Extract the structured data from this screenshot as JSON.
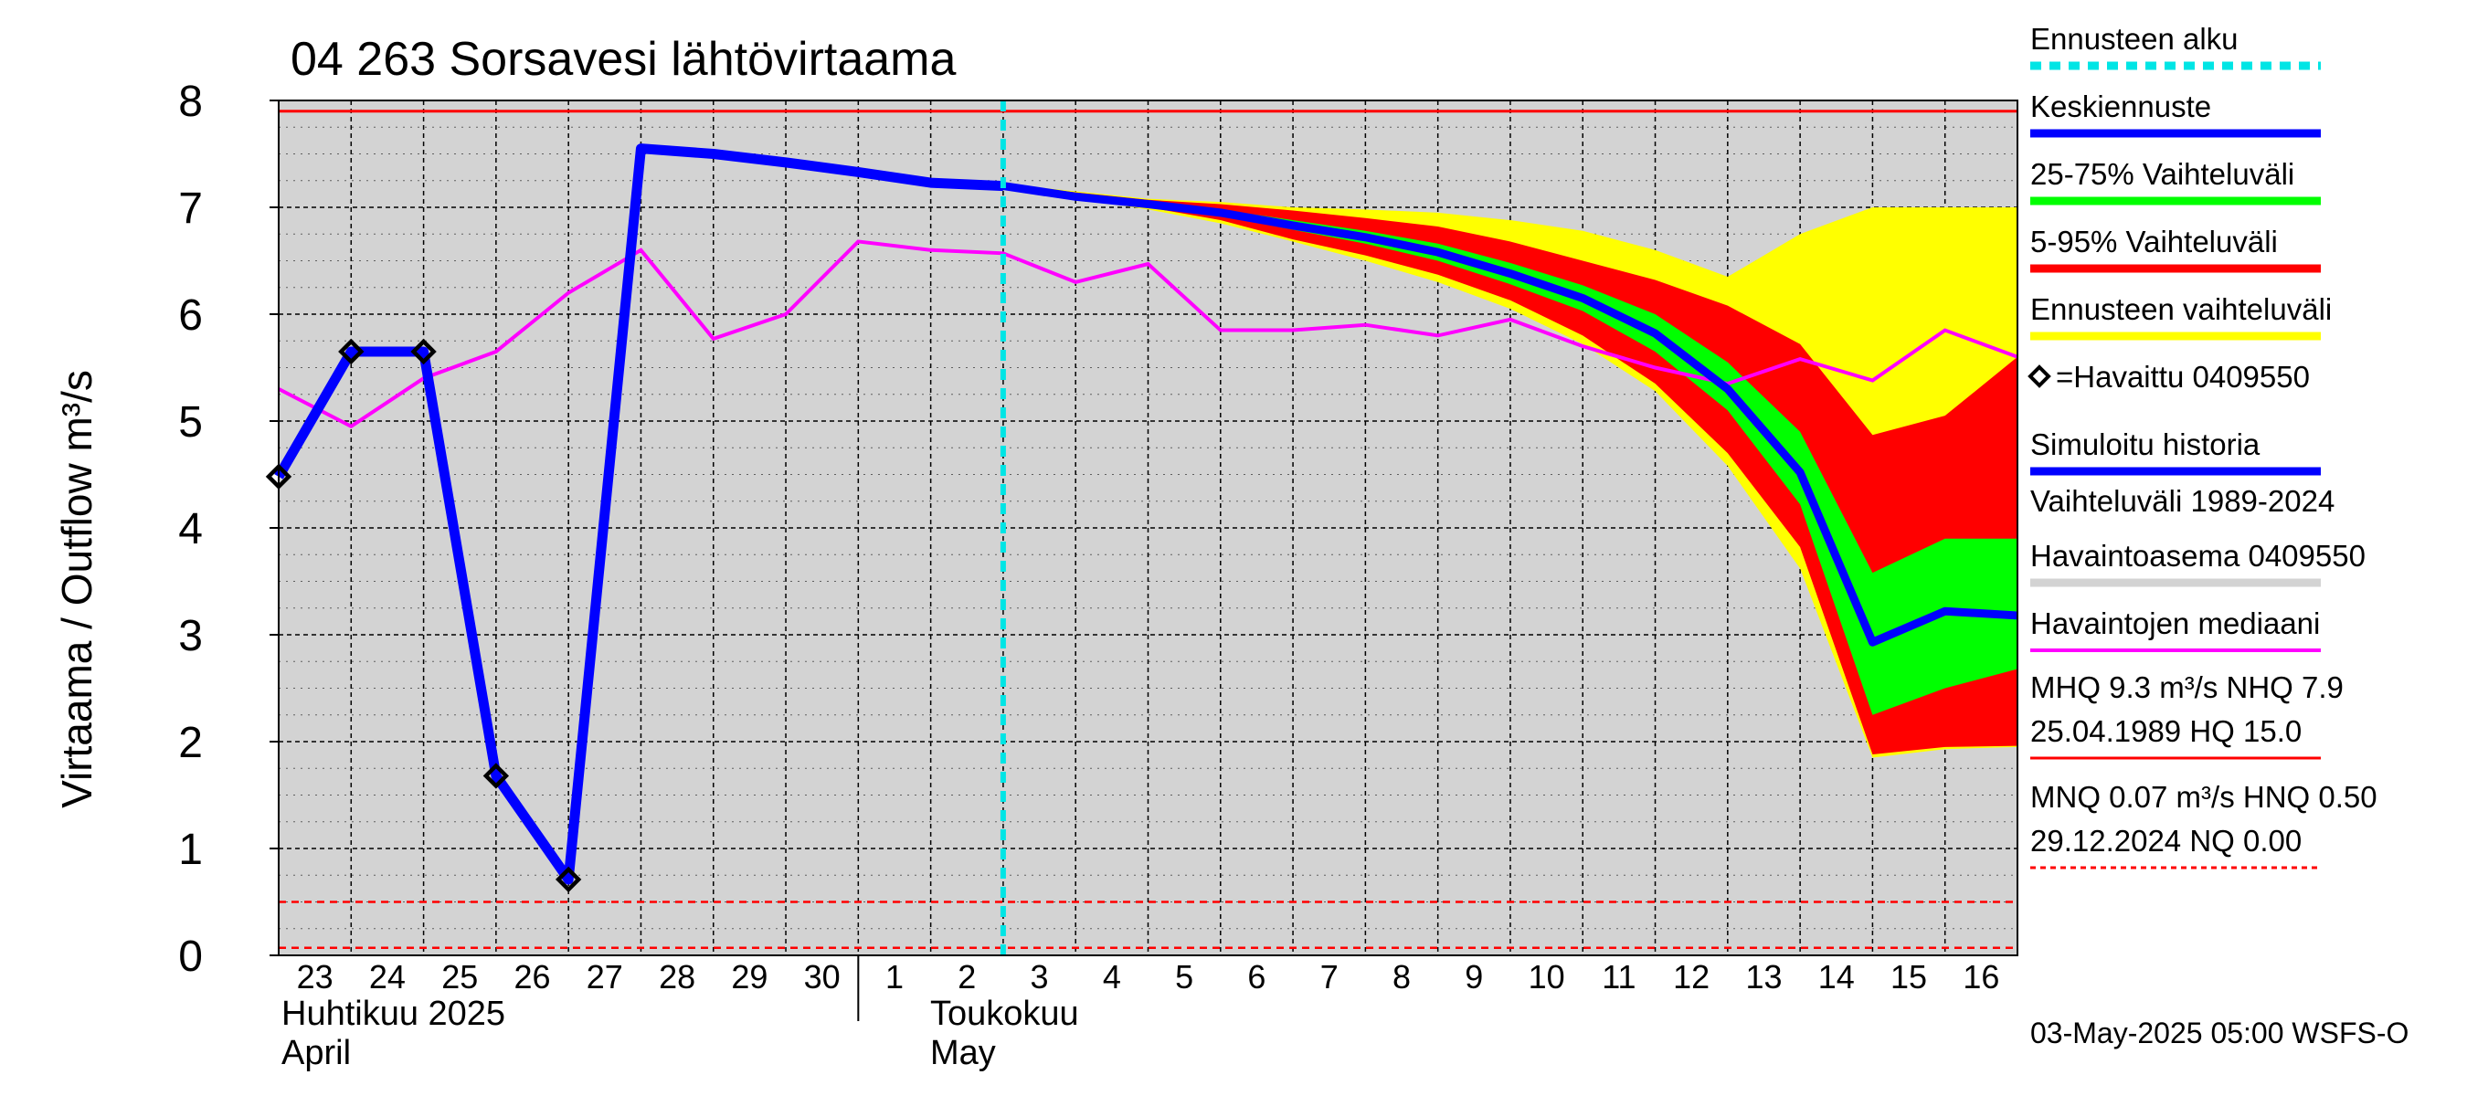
{
  "chart_data": {
    "type": "area",
    "title": "04 263 Sorsavesi lähtövirtaama",
    "ylabel": "Virtaama / Outflow    m³/s",
    "ylim": [
      0,
      8
    ],
    "yticks": [
      0,
      1,
      2,
      3,
      4,
      5,
      6,
      7,
      8
    ],
    "x_days": [
      {
        "day": 0,
        "label": "23"
      },
      {
        "day": 1,
        "label": "24"
      },
      {
        "day": 2,
        "label": "25"
      },
      {
        "day": 3,
        "label": "26"
      },
      {
        "day": 4,
        "label": "27"
      },
      {
        "day": 5,
        "label": "28"
      },
      {
        "day": 6,
        "label": "29"
      },
      {
        "day": 7,
        "label": "30"
      },
      {
        "day": 8,
        "label": "1"
      },
      {
        "day": 9,
        "label": "2"
      },
      {
        "day": 10,
        "label": "3"
      },
      {
        "day": 11,
        "label": "4"
      },
      {
        "day": 12,
        "label": "5"
      },
      {
        "day": 13,
        "label": "6"
      },
      {
        "day": 14,
        "label": "7"
      },
      {
        "day": 15,
        "label": "8"
      },
      {
        "day": 16,
        "label": "9"
      },
      {
        "day": 17,
        "label": "10"
      },
      {
        "day": 18,
        "label": "11"
      },
      {
        "day": 19,
        "label": "12"
      },
      {
        "day": 20,
        "label": "13"
      },
      {
        "day": 21,
        "label": "14"
      },
      {
        "day": 22,
        "label": "15"
      },
      {
        "day": 23,
        "label": "16"
      }
    ],
    "xlim_days": [
      0,
      24
    ],
    "month_labels": {
      "april_fi": "Huhtikuu  2025",
      "april_en": "April",
      "may_fi": "Toukokuu",
      "may_en": "May"
    },
    "forecast_start_day": 10,
    "reference_lines": {
      "high": 7.9,
      "low_a": 0.5,
      "low_b": 0.07
    },
    "observed": {
      "name": "=Havaittu 0409550",
      "x": [
        0,
        1,
        2,
        3,
        4
      ],
      "y": [
        4.48,
        5.65,
        5.65,
        1.68,
        0.71
      ]
    },
    "simulated": {
      "name": "Simuloitu historia",
      "x": [
        0,
        1,
        2,
        3,
        4,
        5,
        6,
        7,
        8,
        9,
        10
      ],
      "y": [
        4.48,
        5.65,
        5.65,
        1.68,
        0.71,
        7.55,
        7.5,
        7.42,
        7.33,
        7.23,
        7.2
      ]
    },
    "median": {
      "name": "Havaintojen mediaani",
      "x": [
        0,
        1,
        2,
        3,
        4,
        5,
        6,
        7,
        8,
        9,
        10,
        11,
        12,
        13,
        14,
        15,
        16,
        17,
        18,
        19,
        20,
        21,
        22,
        23,
        24
      ],
      "y": [
        5.3,
        4.95,
        5.4,
        5.65,
        6.2,
        6.6,
        5.77,
        6.0,
        6.68,
        6.6,
        6.57,
        6.3,
        6.47,
        5.85,
        5.85,
        5.9,
        5.8,
        5.95,
        5.7,
        5.5,
        5.35,
        5.58,
        5.38,
        5.85,
        5.6
      ]
    },
    "forecast_x": [
      10,
      11,
      12,
      13,
      14,
      15,
      16,
      17,
      18,
      19,
      20,
      21,
      22,
      23,
      24
    ],
    "forecast_mean": {
      "name": "Keskiennuste",
      "y": [
        7.2,
        7.1,
        7.03,
        6.95,
        6.83,
        6.72,
        6.58,
        6.38,
        6.15,
        5.82,
        5.3,
        4.52,
        2.93,
        3.22,
        3.18
      ]
    },
    "band_forecast": {
      "name": "Ennusteen vaihteluväli",
      "lower": [
        7.2,
        7.08,
        6.98,
        6.85,
        6.68,
        6.5,
        6.3,
        6.05,
        5.72,
        5.28,
        4.58,
        3.62,
        1.85,
        1.93,
        1.95
      ],
      "upper": [
        7.22,
        7.15,
        7.08,
        7.05,
        7.0,
        6.98,
        6.95,
        6.88,
        6.78,
        6.6,
        6.35,
        6.75,
        7.0,
        7.0,
        7.0
      ]
    },
    "band_5_95": {
      "name": "5-95% Vaihteluväli",
      "lower": [
        7.2,
        7.09,
        7.0,
        6.88,
        6.7,
        6.55,
        6.37,
        6.13,
        5.8,
        5.35,
        4.7,
        3.82,
        1.88,
        1.95,
        1.96
      ],
      "upper": [
        7.22,
        7.14,
        7.07,
        7.03,
        6.97,
        6.9,
        6.82,
        6.68,
        6.5,
        6.32,
        6.08,
        5.72,
        4.87,
        5.05,
        5.6
      ]
    },
    "band_25_75": {
      "name": "25-75% Vaihteluväli",
      "lower": [
        7.2,
        7.1,
        7.02,
        6.92,
        6.79,
        6.66,
        6.5,
        6.28,
        6.03,
        5.65,
        5.1,
        4.22,
        2.25,
        2.5,
        2.68
      ],
      "upper": [
        7.21,
        7.12,
        7.05,
        6.98,
        6.88,
        6.78,
        6.66,
        6.48,
        6.27,
        6.0,
        5.55,
        4.9,
        3.58,
        3.9,
        3.9
      ]
    },
    "history_band_name": "Vaihteluväli 1989-2024\n Havaintoasema 0409550",
    "legend": [
      {
        "key": "forecast_start",
        "label": "Ennusteen alku",
        "color": "#00e5e5",
        "style": "dashed"
      },
      {
        "key": "mean",
        "label": "Keskiennuste",
        "color": "#0000ff",
        "style": "solid"
      },
      {
        "key": "q25_75",
        "label": "25-75% Vaihteluväli",
        "color": "#00ff00",
        "style": "solid"
      },
      {
        "key": "q5_95",
        "label": "5-95% Vaihteluväli",
        "color": "#ff0000",
        "style": "solid"
      },
      {
        "key": "range",
        "label": "Ennusteen vaihteluväli",
        "color": "#ffff00",
        "style": "solid"
      },
      {
        "key": "observed",
        "label": "=Havaittu 0409550",
        "color": "#000000",
        "style": "marker"
      },
      {
        "key": "simulated",
        "label": "Simuloitu historia",
        "color": "#0000ff",
        "style": "solid"
      },
      {
        "key": "hist_line1",
        "label": "Vaihteluväli 1989-2024",
        "color": "#d3d3d3",
        "style": "text"
      },
      {
        "key": "hist_line2",
        "label": " Havaintoasema 0409550",
        "color": "#d3d3d3",
        "style": "solid"
      },
      {
        "key": "median",
        "label": "Havaintojen mediaani",
        "color": "#ff00ff",
        "style": "solid"
      },
      {
        "key": "mhq1",
        "label": "MHQ  9.3 m³/s NHQ  7.9",
        "color": "#ff0000",
        "style": "text"
      },
      {
        "key": "mhq2",
        "label": "25.04.1989 HQ 15.0",
        "color": "#ff0000",
        "style": "solid"
      },
      {
        "key": "mnq1",
        "label": "MNQ 0.07 m³/s HNQ 0.50",
        "color": "#ff0000",
        "style": "text"
      },
      {
        "key": "mnq2",
        "label": "29.12.2024 NQ 0.00",
        "color": "#ff0000",
        "style": "dashed"
      }
    ],
    "footer": "03-May-2025 05:00 WSFS-O",
    "colors": {
      "plot_bg": "#d3d3d3",
      "grid": "#000000",
      "band_forecast": "#ffff00",
      "band_5_95": "#ff0000",
      "band_25_75": "#00ff00",
      "mean": "#0000ff",
      "simulated": "#0000ff",
      "median": "#ff00ff",
      "forecast_start": "#00e5e5",
      "reference": "#ff0000"
    }
  }
}
